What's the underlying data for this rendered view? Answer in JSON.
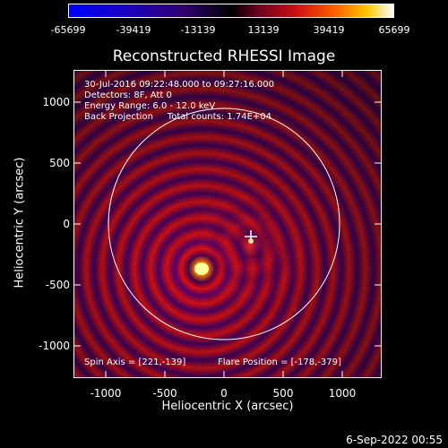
{
  "colorbar": {
    "ticks": [
      "-65699",
      "-39419",
      "-13139",
      "13139",
      "39419",
      "65699"
    ]
  },
  "title": "Reconstructed RHESSI Image",
  "annotations": {
    "line1": "30-Jul-2016 09:22:48.000 to 09:27:16.000",
    "line2": "Detectors: 8F, Att 0",
    "line3": "Energy Range: 6.0 - 12.0 keV",
    "line4": "Back Projection     Total counts: 1.74E+04",
    "spin_axis": "Spin Axis = [221,-139]",
    "flare_position": "Flare Position = [-178,-379]"
  },
  "axes": {
    "xlabel": "Heliocentric X (arcsec)",
    "ylabel": "Heliocentric Y (arcsec)",
    "xticks": [
      "-1000",
      "-500",
      "0",
      "500",
      "1000"
    ],
    "yticks": [
      "1000",
      "500",
      "0",
      "-500",
      "-1000"
    ]
  },
  "footer": {
    "date": "6-Sep-2022 00:55"
  }
}
